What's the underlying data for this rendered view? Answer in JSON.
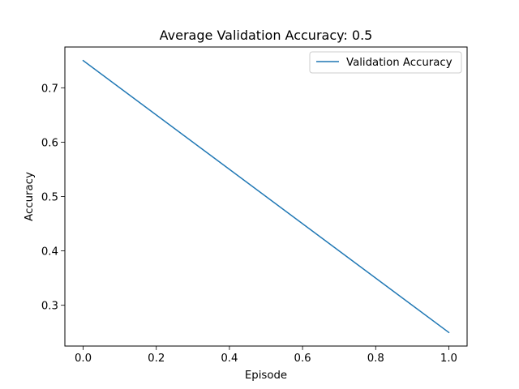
{
  "chart_data": {
    "type": "line",
    "title": "Average Validation Accuracy: 0.5",
    "xlabel": "Episode",
    "ylabel": "Accuracy",
    "xlim": [
      -0.05,
      1.05
    ],
    "ylim": [
      0.225,
      0.775
    ],
    "xticks": [
      0.0,
      0.2,
      0.4,
      0.6,
      0.8,
      1.0
    ],
    "xtick_labels": [
      "0.0",
      "0.2",
      "0.4",
      "0.6",
      "0.8",
      "1.0"
    ],
    "yticks": [
      0.3,
      0.4,
      0.5,
      0.6,
      0.7
    ],
    "ytick_labels": [
      "0.3",
      "0.4",
      "0.5",
      "0.6",
      "0.7"
    ],
    "grid": false,
    "legend_position": "top-right",
    "series": [
      {
        "name": "Validation Accuracy",
        "color": "#1f77b4",
        "x": [
          0.0,
          1.0
        ],
        "y": [
          0.75,
          0.25
        ]
      }
    ]
  }
}
